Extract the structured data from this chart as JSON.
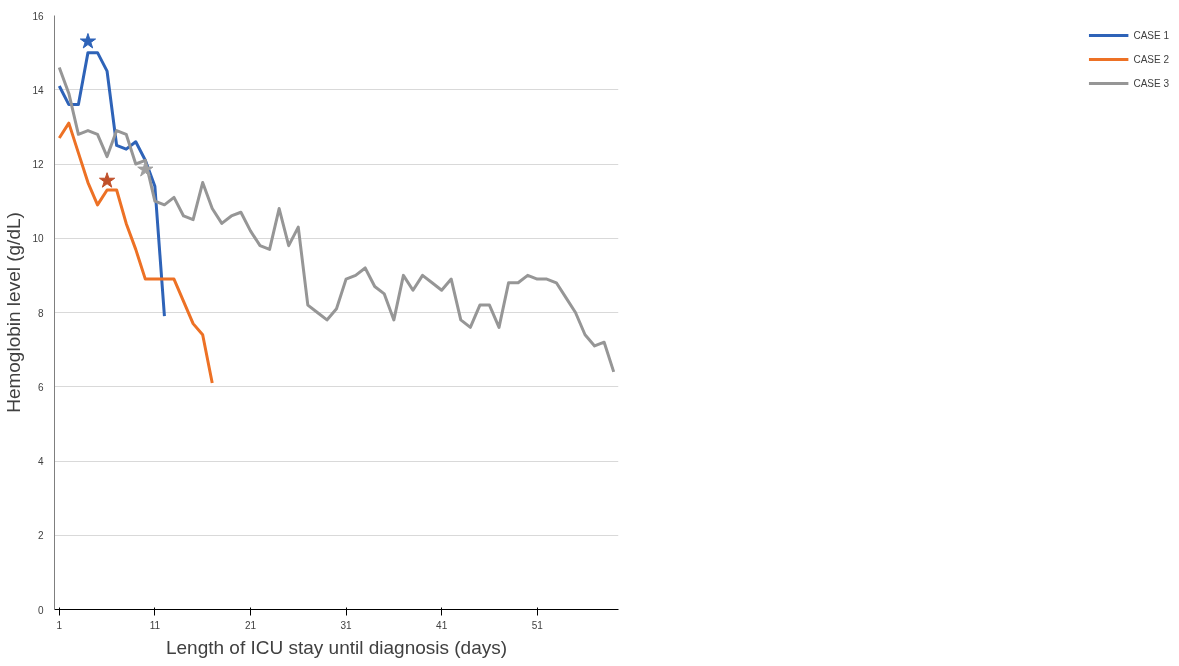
{
  "chart_data": {
    "type": "line",
    "xlabel": "Length of ICU stay until diagnosis (days)",
    "ylabel": "Hemoglobin level (g/dL)",
    "xlim": [
      0.5,
      59.5
    ],
    "xticks": [
      1,
      11,
      21,
      31,
      41,
      51
    ],
    "ylim": [
      0,
      16
    ],
    "yticks": [
      0,
      2,
      4,
      6,
      8,
      10,
      12,
      14,
      16
    ],
    "grid": "y",
    "legend": "right",
    "series": [
      {
        "name": "CASE 1",
        "color": "#2e63b8",
        "x": [
          1,
          2,
          3,
          4,
          5,
          6,
          7,
          8,
          9,
          10,
          11,
          12
        ],
        "values": [
          14.1,
          13.6,
          13.6,
          15.0,
          15.0,
          14.5,
          12.5,
          12.4,
          12.6,
          12.1,
          11.4,
          7.9
        ]
      },
      {
        "name": "CASE 2",
        "color": "#ed7125",
        "x": [
          1,
          2,
          3,
          4,
          5,
          6,
          7,
          8,
          9,
          10,
          11,
          12,
          13,
          14,
          15,
          16,
          17
        ],
        "values": [
          12.7,
          13.1,
          12.3,
          11.5,
          10.9,
          11.3,
          11.3,
          10.4,
          9.7,
          8.9,
          8.9,
          8.9,
          8.9,
          8.3,
          7.7,
          7.4,
          6.1
        ]
      },
      {
        "name": "CASE 3",
        "color": "#969696",
        "x": [
          1,
          2,
          3,
          4,
          5,
          6,
          7,
          8,
          9,
          10,
          11,
          12,
          13,
          14,
          15,
          16,
          17,
          18,
          19,
          20,
          21,
          22,
          23,
          24,
          25,
          26,
          27,
          28,
          29,
          30,
          31,
          32,
          33,
          34,
          35,
          36,
          37,
          38,
          39,
          40,
          41,
          42,
          43,
          44,
          45,
          46,
          47,
          48,
          49,
          50,
          51,
          52,
          53,
          54,
          55,
          56,
          57,
          58,
          59
        ],
        "values": [
          14.6,
          13.9,
          12.8,
          12.9,
          12.8,
          12.2,
          12.9,
          12.8,
          12.0,
          12.1,
          11.0,
          10.9,
          11.1,
          10.6,
          10.5,
          11.5,
          10.8,
          10.4,
          10.6,
          10.7,
          10.2,
          9.8,
          9.7,
          10.8,
          9.8,
          10.3,
          8.2,
          8.0,
          7.8,
          8.1,
          8.9,
          9.0,
          9.2,
          8.7,
          8.5,
          7.8,
          9.0,
          8.6,
          9.0,
          8.8,
          8.6,
          8.9,
          7.8,
          7.6,
          8.2,
          8.2,
          7.6,
          8.8,
          8.8,
          9.0,
          8.9,
          8.9,
          8.8,
          8.4,
          8.0,
          7.4,
          7.1,
          7.2,
          6.4
        ]
      },
      {
        "type": "scatter",
        "marker": "star",
        "color": "#2e63b8",
        "x": [
          4
        ],
        "values": [
          15.3
        ]
      },
      {
        "type": "scatter",
        "marker": "star",
        "color": "#c0502a",
        "x": [
          6
        ],
        "values": [
          11.55
        ]
      },
      {
        "type": "scatter",
        "marker": "star",
        "color": "#a0a0a0",
        "x": [
          10
        ],
        "values": [
          11.85
        ]
      }
    ]
  }
}
